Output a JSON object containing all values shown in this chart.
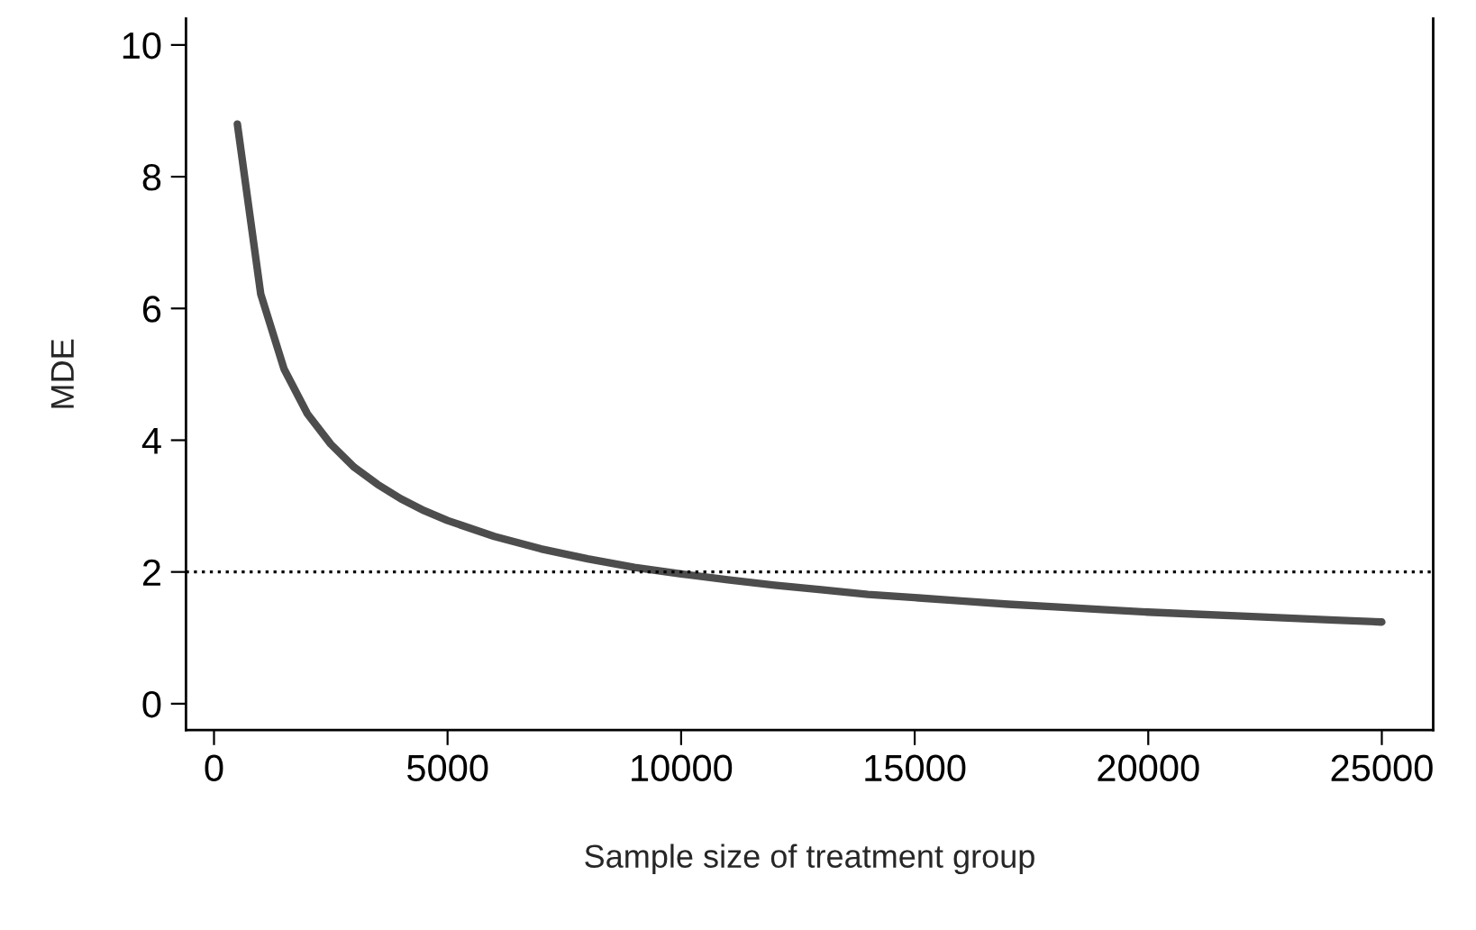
{
  "chart_data": {
    "type": "line",
    "xlabel": "Sample size of treatment group",
    "ylabel": "MDE",
    "x": [
      500,
      1000,
      1500,
      2000,
      2500,
      3000,
      3500,
      4000,
      4500,
      5000,
      6000,
      7000,
      8000,
      9000,
      10000,
      11000,
      12000,
      13000,
      14000,
      15000,
      16000,
      17000,
      18000,
      19000,
      20000,
      21000,
      22000,
      23000,
      24000,
      25000
    ],
    "series": [
      {
        "color": "#4d4d4d",
        "values": [
          8.8,
          6.22,
          5.08,
          4.4,
          3.94,
          3.59,
          3.33,
          3.11,
          2.93,
          2.78,
          2.54,
          2.35,
          2.2,
          2.07,
          1.97,
          1.88,
          1.8,
          1.73,
          1.66,
          1.61,
          1.56,
          1.51,
          1.47,
          1.43,
          1.39,
          1.36,
          1.33,
          1.3,
          1.27,
          1.24
        ]
      }
    ],
    "xlim": [
      -600,
      26100
    ],
    "xticks": [
      0,
      5000,
      10000,
      15000,
      20000,
      25000
    ],
    "ylim": [
      -0.4,
      10.4
    ],
    "yticks": [
      0,
      2,
      4,
      6,
      8,
      10
    ],
    "ref_lines": [
      {
        "axis": "y",
        "value": 2,
        "color": "#000000",
        "line_style": "dotted"
      }
    ],
    "grid": false,
    "legend": false,
    "marker": "none",
    "line_style": "solid"
  }
}
